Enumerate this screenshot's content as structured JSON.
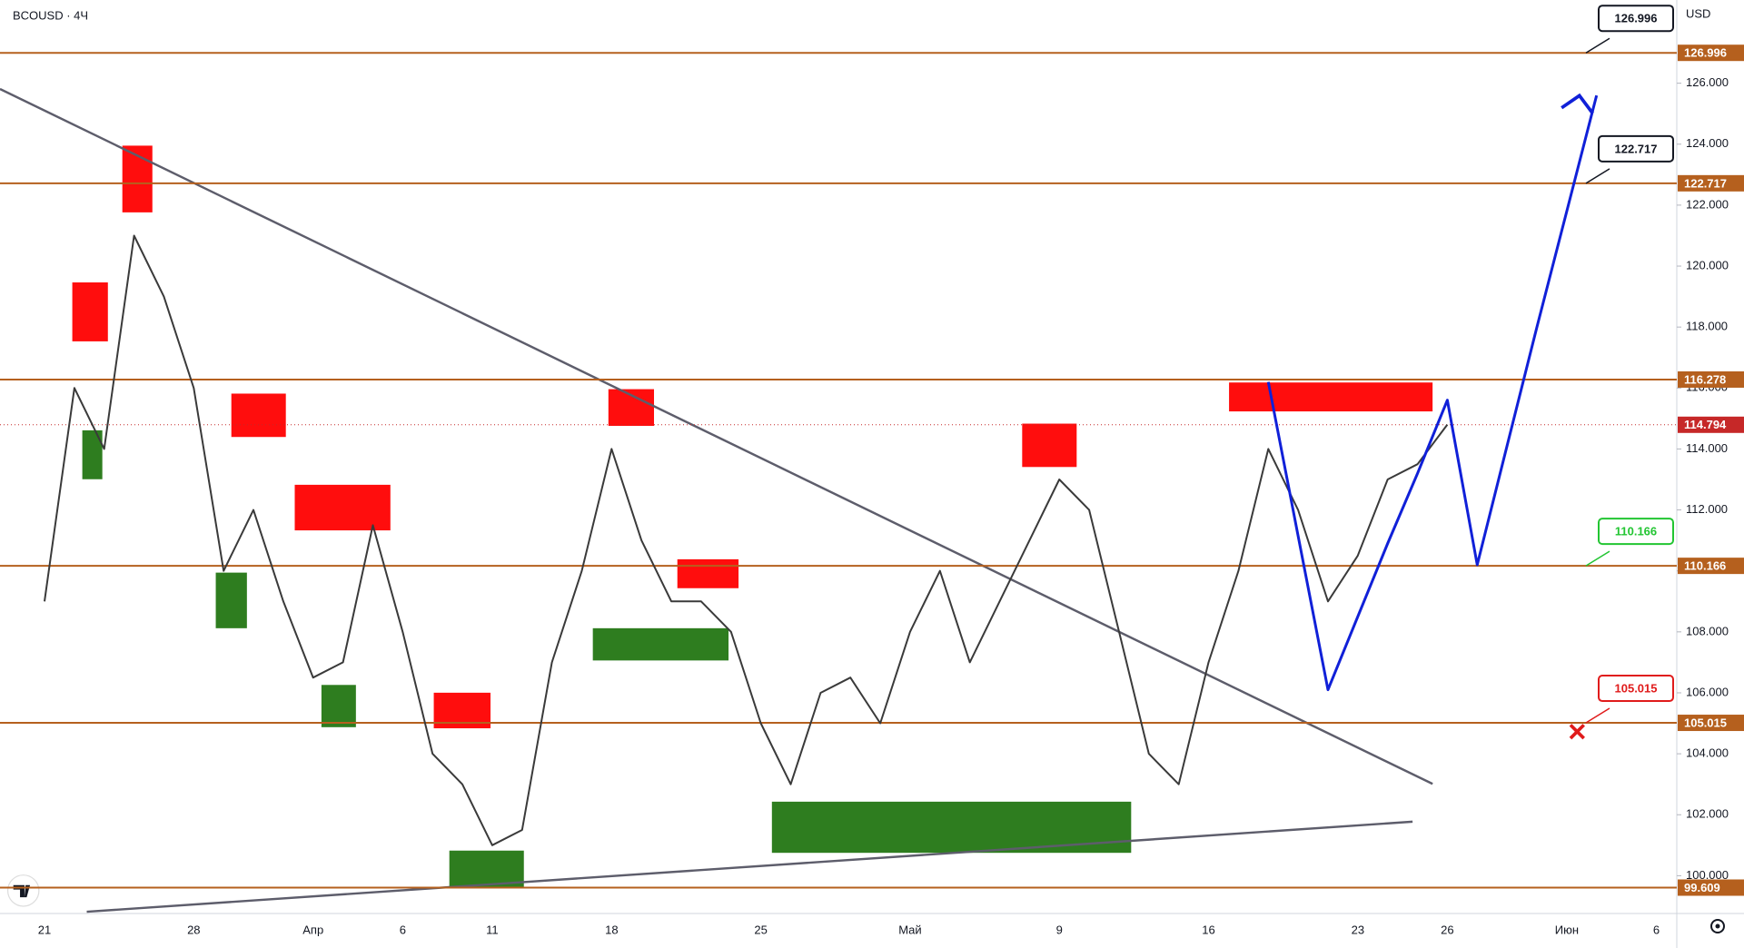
{
  "header": {
    "symbol": "BCOUSD · 4Ч",
    "currency": "USD"
  },
  "chart_data": {
    "type": "line",
    "categories": [
      "21",
      null,
      null,
      null,
      null,
      "28",
      null,
      null,
      null,
      "Апр",
      null,
      null,
      "6",
      null,
      null,
      "11",
      null,
      null,
      null,
      "18",
      null,
      null,
      null,
      null,
      "25",
      null,
      null,
      null,
      null,
      "Май",
      null,
      null,
      null,
      null,
      "9",
      null,
      null,
      null,
      null,
      "16",
      null,
      null,
      null,
      null,
      "23",
      null,
      null,
      "26",
      null,
      null,
      null,
      "Июн",
      null,
      null,
      "6",
      null
    ],
    "price": {
      "color": "#3a3a3a",
      "values": [
        109,
        116,
        114,
        121,
        119,
        116,
        110,
        112,
        109,
        106.5,
        107,
        111.5,
        108,
        104,
        103,
        101,
        101.5,
        107,
        110,
        114,
        111,
        109,
        109,
        108,
        105,
        103,
        106,
        106.5,
        105,
        108,
        110,
        107,
        109,
        111,
        113,
        112,
        108,
        104,
        103,
        107,
        110,
        114,
        112,
        109,
        110.5,
        113,
        113.5,
        114.8,
        null,
        null,
        null,
        null,
        null,
        null,
        null,
        null
      ]
    },
    "projection": {
      "color": "#1020d8",
      "values": [
        null,
        null,
        null,
        null,
        null,
        null,
        null,
        null,
        null,
        null,
        null,
        null,
        null,
        null,
        null,
        null,
        null,
        null,
        null,
        null,
        null,
        null,
        null,
        null,
        null,
        null,
        null,
        null,
        null,
        null,
        null,
        null,
        null,
        null,
        null,
        null,
        null,
        null,
        null,
        null,
        null,
        116.2,
        111.15,
        106.1,
        108.5,
        110.9,
        113.2,
        115.6,
        110.2,
        114.1,
        118,
        121.8,
        125.6,
        null,
        null,
        null
      ]
    },
    "current_price": 114.794,
    "current_color": "#c62828",
    "level_color": "#b5601e",
    "levels": [
      {
        "value": 126.996,
        "callout_color": "#131722"
      },
      {
        "value": 122.717,
        "callout_color": "#131722"
      },
      {
        "value": 116.278
      },
      {
        "value": 110.166,
        "callout_color": "#22c532"
      },
      {
        "value": 105.015,
        "callout_color": "#e01b1b"
      },
      {
        "value": 99.609
      }
    ],
    "ylim": [
      98.76,
      128.73
    ],
    "yticks": [
      {
        "value": 100,
        "label": "100.000"
      },
      {
        "value": 102,
        "label": "102.000"
      },
      {
        "value": 104,
        "label": "104.000"
      },
      {
        "value": 106,
        "label": "106.000"
      },
      {
        "value": 108,
        "label": "108.000"
      },
      {
        "value": 110,
        "label": "110.000"
      },
      {
        "value": 112,
        "label": "112.000"
      },
      {
        "value": 114,
        "label": "114.000"
      },
      {
        "value": 116,
        "label": "116.000"
      },
      {
        "value": 118,
        "label": "118.000"
      },
      {
        "value": 120,
        "label": "120.000"
      },
      {
        "value": 122,
        "label": "122.000"
      },
      {
        "value": 124,
        "label": "124.000"
      },
      {
        "value": 126,
        "label": "126.000"
      }
    ]
  }
}
